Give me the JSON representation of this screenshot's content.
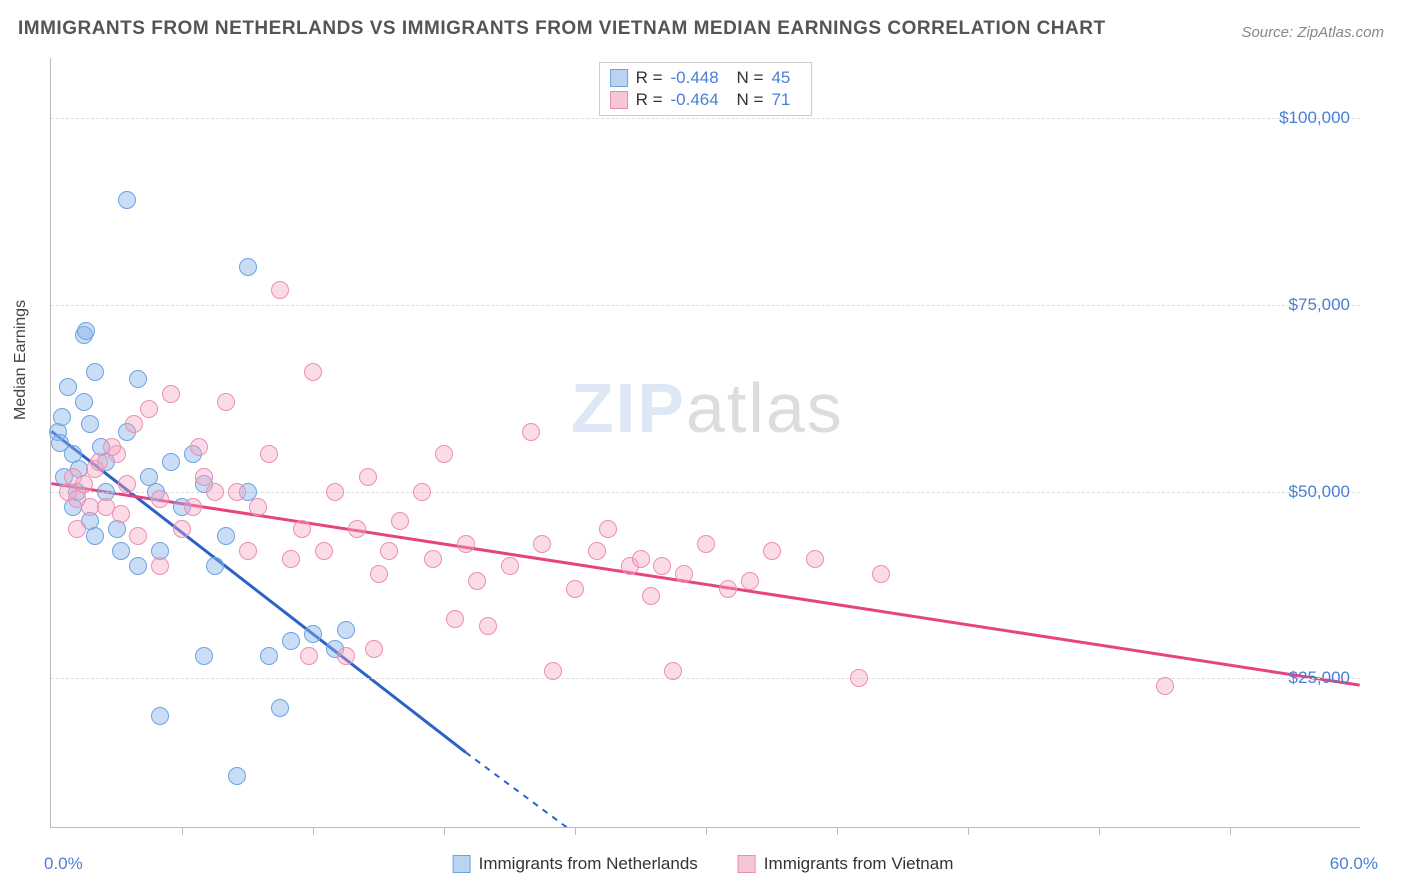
{
  "title": "IMMIGRANTS FROM NETHERLANDS VS IMMIGRANTS FROM VIETNAM MEDIAN EARNINGS CORRELATION CHART",
  "source": "Source: ZipAtlas.com",
  "watermark": {
    "part1": "ZIP",
    "part2": "atlas"
  },
  "y_axis": {
    "title": "Median Earnings",
    "ticks": [
      {
        "value": 25000,
        "label": "$25,000"
      },
      {
        "value": 50000,
        "label": "$50,000"
      },
      {
        "value": 75000,
        "label": "$75,000"
      },
      {
        "value": 100000,
        "label": "$100,000"
      }
    ],
    "min": 5000,
    "max": 108000
  },
  "x_axis": {
    "min": 0,
    "max": 60,
    "left_label": "0.0%",
    "right_label": "60.0%",
    "tick_positions": [
      6,
      12,
      18,
      24,
      30,
      36,
      42,
      48,
      54
    ]
  },
  "legend_top": [
    {
      "color_fill": "#b9d3f0",
      "color_border": "#6ea3e0",
      "r": "-0.448",
      "n": "45"
    },
    {
      "color_fill": "#f6c6d4",
      "color_border": "#eb8fb0",
      "r": "-0.464",
      "n": "71"
    }
  ],
  "series": [
    {
      "name": "Immigrants from Netherlands",
      "fill": "rgba(135, 180, 235, 0.45)",
      "stroke": "#6ea3e0",
      "trend_color": "#2b62c9",
      "trend": {
        "x1": 0,
        "y1": 58000,
        "x2_solid": 19,
        "y2_solid": 15000,
        "x2_dash": 25,
        "y2_dash": 2000
      },
      "marker_r": 9,
      "points": [
        [
          0.3,
          58000
        ],
        [
          0.4,
          56500
        ],
        [
          0.5,
          60000
        ],
        [
          0.8,
          64000
        ],
        [
          1.0,
          55000
        ],
        [
          1.2,
          50000
        ],
        [
          1.0,
          48000
        ],
        [
          1.3,
          53000
        ],
        [
          1.5,
          62000
        ],
        [
          1.5,
          71000
        ],
        [
          1.6,
          71500
        ],
        [
          1.8,
          59000
        ],
        [
          2.0,
          66000
        ],
        [
          2.3,
          56000
        ],
        [
          2.5,
          50000
        ],
        [
          2.5,
          54000
        ],
        [
          3.5,
          89000
        ],
        [
          3.0,
          45000
        ],
        [
          3.2,
          42000
        ],
        [
          3.5,
          58000
        ],
        [
          4.0,
          65000
        ],
        [
          4.5,
          52000
        ],
        [
          4.8,
          50000
        ],
        [
          5.0,
          42000
        ],
        [
          5.5,
          54000
        ],
        [
          5.0,
          20000
        ],
        [
          6.0,
          48000
        ],
        [
          6.5,
          55000
        ],
        [
          7.0,
          51000
        ],
        [
          7.0,
          28000
        ],
        [
          7.5,
          40000
        ],
        [
          8.0,
          44000
        ],
        [
          8.5,
          12000
        ],
        [
          9.0,
          80000
        ],
        [
          9.0,
          50000
        ],
        [
          10.0,
          28000
        ],
        [
          10.5,
          21000
        ],
        [
          11.0,
          30000
        ],
        [
          12.0,
          31000
        ],
        [
          13.0,
          29000
        ],
        [
          13.5,
          31500
        ],
        [
          4.0,
          40000
        ],
        [
          2.0,
          44000
        ],
        [
          0.6,
          52000
        ],
        [
          1.8,
          46000
        ]
      ]
    },
    {
      "name": "Immigrants from Vietnam",
      "fill": "rgba(245, 165, 195, 0.40)",
      "stroke": "#eb8fb0",
      "trend_color": "#e5447e",
      "trend": {
        "x1": 0,
        "y1": 51000,
        "x2_solid": 60,
        "y2_solid": 24000
      },
      "marker_r": 9,
      "points": [
        [
          0.8,
          50000
        ],
        [
          1.0,
          52000
        ],
        [
          1.2,
          49000
        ],
        [
          1.5,
          51000
        ],
        [
          1.8,
          48000
        ],
        [
          2.0,
          53000
        ],
        [
          2.2,
          54000
        ],
        [
          2.5,
          48000
        ],
        [
          3.0,
          55000
        ],
        [
          3.2,
          47000
        ],
        [
          3.5,
          51000
        ],
        [
          4.0,
          44000
        ],
        [
          4.5,
          61000
        ],
        [
          5.0,
          49000
        ],
        [
          5.5,
          63000
        ],
        [
          6.0,
          45000
        ],
        [
          6.5,
          48000
        ],
        [
          7.0,
          52000
        ],
        [
          7.5,
          50000
        ],
        [
          8.0,
          62000
        ],
        [
          8.5,
          50000
        ],
        [
          9.0,
          42000
        ],
        [
          9.5,
          48000
        ],
        [
          10.0,
          55000
        ],
        [
          10.5,
          77000
        ],
        [
          11.0,
          41000
        ],
        [
          11.5,
          45000
        ],
        [
          12.0,
          66000
        ],
        [
          12.5,
          42000
        ],
        [
          13.0,
          50000
        ],
        [
          13.5,
          28000
        ],
        [
          14.0,
          45000
        ],
        [
          14.5,
          52000
        ],
        [
          15.0,
          39000
        ],
        [
          15.5,
          42000
        ],
        [
          16.0,
          46000
        ],
        [
          17.0,
          50000
        ],
        [
          17.5,
          41000
        ],
        [
          18.0,
          55000
        ],
        [
          18.5,
          33000
        ],
        [
          19.0,
          43000
        ],
        [
          19.5,
          38000
        ],
        [
          20.0,
          32000
        ],
        [
          21.0,
          40000
        ],
        [
          22.0,
          58000
        ],
        [
          22.5,
          43000
        ],
        [
          23.0,
          26000
        ],
        [
          24.0,
          37000
        ],
        [
          25.0,
          42000
        ],
        [
          25.5,
          45000
        ],
        [
          26.5,
          40000
        ],
        [
          27.0,
          41000
        ],
        [
          27.5,
          36000
        ],
        [
          28.0,
          40000
        ],
        [
          28.5,
          26000
        ],
        [
          29.0,
          39000
        ],
        [
          30.0,
          43000
        ],
        [
          31.0,
          37000
        ],
        [
          32.0,
          38000
        ],
        [
          33.0,
          42000
        ],
        [
          35.0,
          41000
        ],
        [
          37.0,
          25000
        ],
        [
          38.0,
          39000
        ],
        [
          2.8,
          56000
        ],
        [
          3.8,
          59000
        ],
        [
          6.8,
          56000
        ],
        [
          11.8,
          28000
        ],
        [
          14.8,
          29000
        ],
        [
          5.0,
          40000
        ],
        [
          51.0,
          24000
        ],
        [
          1.2,
          45000
        ]
      ]
    }
  ],
  "legend_bottom": [
    {
      "fill": "#b9d3f0",
      "border": "#6ea3e0",
      "label": "Immigrants from Netherlands"
    },
    {
      "fill": "#f6c6d4",
      "border": "#eb8fb0",
      "label": "Immigrants from Vietnam"
    }
  ]
}
